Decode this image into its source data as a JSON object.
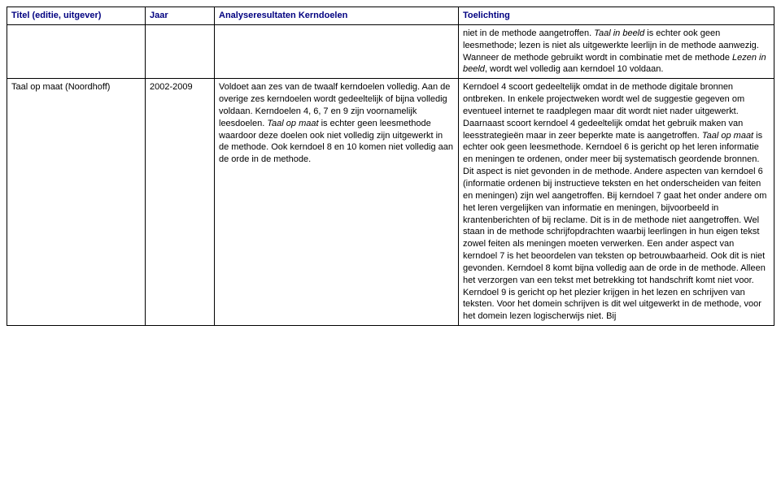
{
  "header": {
    "col_title": "Titel (editie, uitgever)",
    "col_year": "Jaar",
    "col_analysis": "Analyseresultaten Kerndoelen",
    "col_toelichting": "Toelichting"
  },
  "row_prev_toelichting": "niet in de methode aangetroffen. Taal in beeld is echter ook geen leesmethode; lezen is niet als uitgewerkte leerlijn in de methode aanwezig. Wanneer de methode gebruikt wordt in combinatie met de methode Lezen in beeld, wordt wel volledig aan kerndoel 10 voldaan.",
  "row": {
    "title": "Taal op maat (Noordhoff)",
    "year": "2002-2009",
    "analysis": "Voldoet aan zes van de twaalf kerndoelen volledig. Aan de overige zes kerndoelen wordt gedeeltelijk of bijna volledig voldaan. Kerndoelen 4, 6, 7 en 9 zijn voornamelijk leesdoelen. Taal op maat is echter geen leesmethode waardoor deze doelen ook niet volledig zijn uitgewerkt in de methode. Ook kerndoel 8 en 10 komen niet volledig aan de orde in de methode.",
    "toelichting": "Kerndoel 4 scoort gedeeltelijk omdat in de methode digitale bronnen ontbreken. In enkele projectweken wordt wel de suggestie gegeven om eventueel internet te raadplegen maar dit wordt niet nader uitgewerkt. Daarnaast scoort kerndoel 4 gedeeltelijk omdat het gebruik maken van leesstrategieën maar in zeer beperkte mate is aangetroffen. Taal op maat is echter ook geen leesmethode. Kerndoel 6 is gericht op het leren informatie en meningen te ordenen, onder meer bij systematisch geordende bronnen. Dit aspect is niet gevonden in de methode. Andere aspecten van kerndoel 6 (informatie ordenen bij instructieve teksten en het onderscheiden van feiten en meningen) zijn wel aangetroffen. Bij kerndoel 7 gaat het onder andere om het leren vergelijken van informatie en meningen, bijvoorbeeld in krantenberichten of bij reclame. Dit is in de methode niet aangetroffen. Wel staan in de methode schrijfopdrachten waarbij leerlingen in hun eigen tekst zowel feiten als meningen moeten verwerken. Een ander aspect van kerndoel 7 is het beoordelen van teksten op betrouwbaarheid. Ook dit is niet gevonden. Kerndoel 8 komt bijna volledig aan de orde in de methode. Alleen het verzorgen van een tekst met betrekking tot handschrift komt niet voor. Kerndoel 9 is gericht op het plezier krijgen in het lezen en schrijven van teksten. Voor het domein schrijven is dit wel uitgewerkt in de methode, voor het domein lezen logischerwijs niet. Bij"
  }
}
